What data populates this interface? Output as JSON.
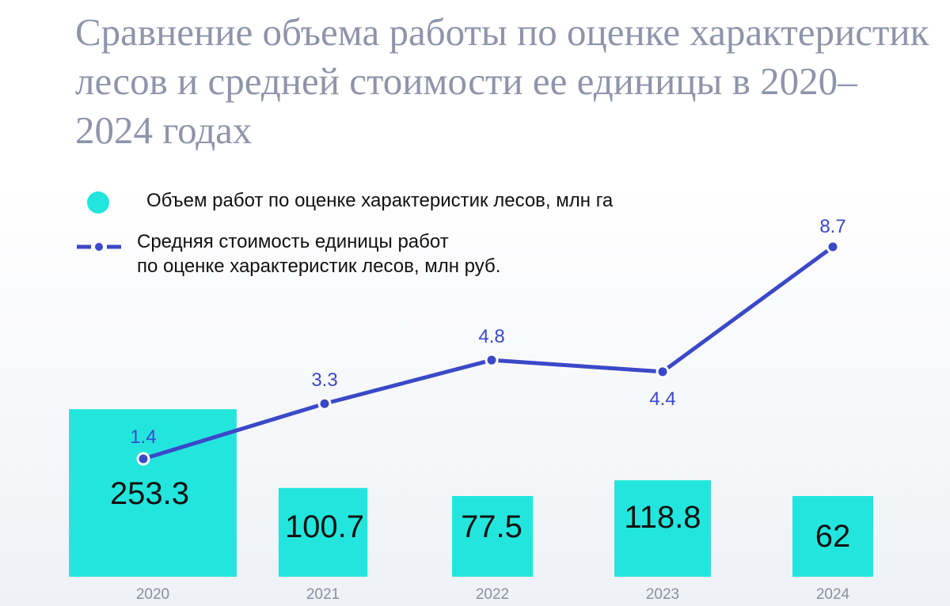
{
  "title": "Сравнение объема работы по оценке характеристик лесов и средней стоимости ее единицы в 2020–2024 годах",
  "legend": {
    "bars": "Объем работ по оценке характеристик лесов, млн га",
    "line_1": "Средняя стоимость единицы работ",
    "line_2": "по оценке характеристик лесов, млн руб."
  },
  "colors": {
    "bar": "#22e6dd",
    "line": "#3b48c8",
    "title": "#8e95aa"
  },
  "chart_data": {
    "type": "bar",
    "categories": [
      "2020",
      "2021",
      "2022",
      "2023",
      "2024"
    ],
    "series": [
      {
        "name": "Объем работ по оценке характеристик лесов, млн га",
        "type": "bar",
        "values": [
          253.3,
          100.7,
          77.5,
          118.8,
          62
        ]
      },
      {
        "name": "Средняя стоимость единицы работ по оценке характеристик лесов, млн руб.",
        "type": "line",
        "values": [
          1.4,
          3.3,
          4.8,
          4.4,
          8.7
        ]
      }
    ],
    "value_labels": {
      "bars": [
        "253.3",
        "100.7",
        "77.5",
        "118.8",
        "62"
      ],
      "line": [
        "1.4",
        "3.3",
        "4.8",
        "4.4",
        "8.7"
      ]
    },
    "grid": false,
    "legend_position": "top-left"
  }
}
